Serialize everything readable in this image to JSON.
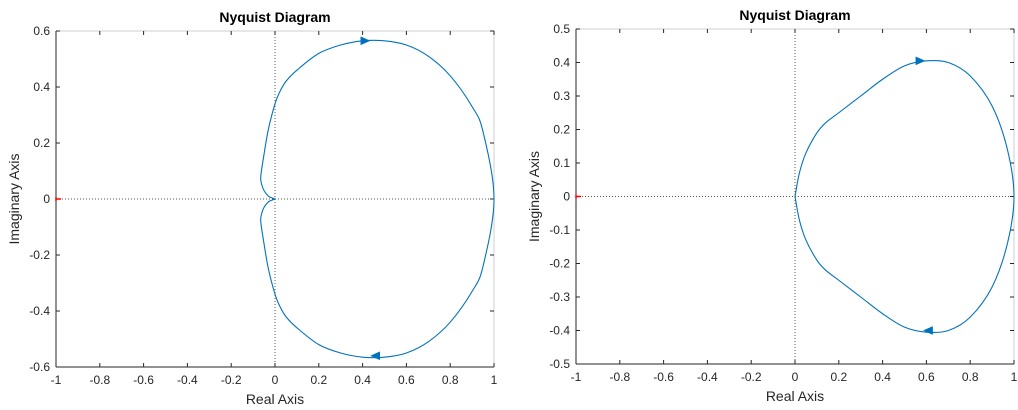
{
  "colors": {
    "curve": "#0072BD",
    "axis": "#262626",
    "box": "#cfcfcf",
    "zero_lines": "#555555",
    "critical_point": "#ff0000"
  },
  "chart_data": [
    {
      "type": "line",
      "title": "Nyquist Diagram",
      "xlabel": "Real Axis",
      "ylabel": "Imaginary Axis",
      "xlim": [
        -1,
        1
      ],
      "ylim": [
        -0.6,
        0.6
      ],
      "xticks": [
        -1,
        -0.8,
        -0.6,
        -0.4,
        -0.2,
        0,
        0.2,
        0.4,
        0.6,
        0.8,
        1
      ],
      "xtick_labels": [
        "-1",
        "-0.8",
        "-0.6",
        "-0.4",
        "-0.2",
        "0",
        "0.2",
        "0.4",
        "0.6",
        "0.8",
        "1"
      ],
      "yticks": [
        -0.6,
        -0.4,
        -0.2,
        0,
        0.2,
        0.4,
        0.6
      ],
      "ytick_labels": [
        "-0.6",
        "-0.4",
        "-0.2",
        "0",
        "0.2",
        "0.4",
        "0.6"
      ],
      "grid": false,
      "critical_point": [
        -1,
        0
      ],
      "series": [
        {
          "x": [
            1.0,
            0.95,
            0.9,
            0.8,
            0.7,
            0.6,
            0.5,
            0.4,
            0.3,
            0.2,
            0.1,
            0.05,
            0.02,
            0.0,
            -0.03,
            -0.05,
            -0.065,
            -0.06,
            -0.05,
            -0.03,
            -0.01,
            0.0
          ],
          "y": [
            0.0,
            0.24,
            0.33,
            0.44,
            0.51,
            0.55,
            0.565,
            0.565,
            0.55,
            0.52,
            0.46,
            0.42,
            0.38,
            0.34,
            0.25,
            0.16,
            0.08,
            0.05,
            0.03,
            0.01,
            0.003,
            0.0
          ],
          "mirror": true,
          "arrows": [
            {
              "x": 0.41,
              "y": 0.565,
              "direction": "right"
            },
            {
              "x": 0.46,
              "y": -0.56,
              "direction": "left"
            }
          ]
        }
      ]
    },
    {
      "type": "line",
      "title": "Nyquist Diagram",
      "xlabel": "Real Axis",
      "ylabel": "Imaginary Axis",
      "xlim": [
        -1,
        1
      ],
      "ylim": [
        -0.5,
        0.5
      ],
      "xticks": [
        -1,
        -0.8,
        -0.6,
        -0.4,
        -0.2,
        0,
        0.2,
        0.4,
        0.6,
        0.8,
        1
      ],
      "xtick_labels": [
        "-1",
        "-0.8",
        "-0.6",
        "-0.4",
        "-0.2",
        "0",
        "0.2",
        "0.4",
        "0.6",
        "0.8",
        "1"
      ],
      "yticks": [
        -0.5,
        -0.4,
        -0.3,
        -0.2,
        -0.1,
        0,
        0.1,
        0.2,
        0.3,
        0.4,
        0.5
      ],
      "ytick_labels": [
        "-0.5",
        "-0.4",
        "-0.3",
        "-0.2",
        "-0.1",
        "0",
        "0.1",
        "0.2",
        "0.3",
        "0.4",
        "0.5"
      ],
      "grid": false,
      "critical_point": [
        -1,
        0
      ],
      "series": [
        {
          "x": [
            1.0,
            0.97,
            0.9,
            0.8,
            0.7,
            0.6,
            0.5,
            0.4,
            0.3,
            0.2,
            0.14,
            0.1,
            0.05,
            0.02,
            0.0
          ],
          "y": [
            0.0,
            0.14,
            0.27,
            0.36,
            0.4,
            0.405,
            0.39,
            0.35,
            0.3,
            0.25,
            0.22,
            0.19,
            0.13,
            0.07,
            0.0
          ],
          "mirror": true,
          "arrows": [
            {
              "x": 0.57,
              "y": 0.405,
              "direction": "right"
            },
            {
              "x": 0.61,
              "y": -0.4,
              "direction": "left"
            }
          ]
        }
      ]
    }
  ]
}
